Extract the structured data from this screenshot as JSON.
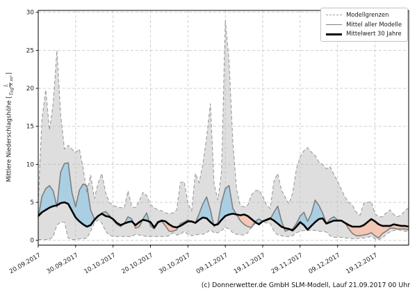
{
  "axes": {
    "ylabel_prefix": "Mittlere Niederschlagshöhe [",
    "ylabel_frac_num": "L",
    "ylabel_frac_den": "Tag × m²",
    "ylabel_suffix": "]"
  },
  "legend": {
    "items": [
      {
        "label": "Modellgrenzen",
        "style": "dashed"
      },
      {
        "label": "Mittel aller Modelle",
        "style": "gray"
      },
      {
        "label": "Mittelwert 30 Jahre",
        "style": "black"
      }
    ]
  },
  "caption": "(c) Donnerwetter.de GmbH SLM-Modell, Lauf 21.09.2017 00 Uhr",
  "chart_data": {
    "type": "line",
    "title": "",
    "xlabel": "",
    "ylabel": "Mittlere Niederschlagshöhe [L/(Tag × m²)]",
    "ylim": [
      0,
      30.25
    ],
    "grid": true,
    "legend_position": "upper right",
    "y_ticks": [
      0,
      5,
      10,
      15,
      20,
      25,
      30
    ],
    "x_ticks": [
      {
        "day": 0,
        "label": "20.09.2017"
      },
      {
        "day": 10,
        "label": "30.09.2017"
      },
      {
        "day": 20,
        "label": "10.10.2017"
      },
      {
        "day": 30,
        "label": "20.10.2017"
      },
      {
        "day": 40,
        "label": "30.10.2017"
      },
      {
        "day": 50,
        "label": "09.11.2017"
      },
      {
        "day": 60,
        "label": "19.11.2017"
      },
      {
        "day": 70,
        "label": "29.11.2017"
      },
      {
        "day": 80,
        "label": "09.12.2017"
      },
      {
        "day": 90,
        "label": "19.12.2017"
      }
    ],
    "x_unit": "Tage ab 20.09.2017",
    "colors": {
      "band": "#bebebe",
      "band_edge": "#9a9a9a",
      "above": "#a6cee3",
      "below": "#f2c5b2",
      "mean": "#7d7d7d",
      "clim": "#000000",
      "grid": "#c9c9c9"
    },
    "series": [
      {
        "name": "Modellgrenzen (obere Grenze)",
        "values": [
          5.0,
          16.0,
          19.8,
          14.5,
          18.0,
          25.0,
          16.5,
          12.0,
          12.5,
          12.0,
          11.6,
          12.0,
          9.5,
          6.2,
          8.6,
          5.5,
          7.5,
          8.8,
          6.3,
          5.0,
          4.6,
          4.4,
          4.3,
          4.3,
          6.5,
          4.4,
          4.3,
          5.2,
          6.3,
          5.9,
          4.7,
          4.3,
          4.0,
          3.9,
          3.6,
          3.5,
          3.6,
          4.0,
          7.6,
          7.7,
          4.9,
          3.9,
          8.8,
          7.6,
          10.0,
          13.5,
          18.0,
          7.5,
          5.3,
          9.0,
          29.0,
          23.5,
          13.0,
          6.8,
          4.6,
          4.4,
          4.6,
          6.0,
          6.5,
          6.6,
          5.8,
          4.7,
          4.2,
          7.8,
          8.8,
          6.6,
          5.7,
          4.8,
          6.2,
          9.4,
          11.0,
          11.8,
          12.2,
          11.6,
          11.2,
          10.3,
          10.0,
          9.4,
          9.7,
          8.7,
          7.8,
          6.7,
          5.7,
          5.0,
          4.6,
          3.7,
          3.3,
          4.9,
          5.0,
          5.1,
          3.5,
          3.1,
          3.1,
          3.6,
          4.0,
          3.4,
          3.1,
          3.3,
          3.9,
          4.3
        ]
      },
      {
        "name": "Modellgrenzen (untere Grenze)",
        "values": [
          0.1,
          0.1,
          0.1,
          0.1,
          0.5,
          2.0,
          2.4,
          2.4,
          0.3,
          0.1,
          0.1,
          0.2,
          0.2,
          0.3,
          1.2,
          2.3,
          2.7,
          2.3,
          1.2,
          0.7,
          0.5,
          0.5,
          0.5,
          0.5,
          0.5,
          0.5,
          0.8,
          0.7,
          0.6,
          0.5,
          0.5,
          0.5,
          0.5,
          0.5,
          0.5,
          0.6,
          1.0,
          0.7,
          0.8,
          1.2,
          0.8,
          0.6,
          0.7,
          0.8,
          0.8,
          1.0,
          1.4,
          1.0,
          1.0,
          1.3,
          1.7,
          1.5,
          1.0,
          0.8,
          0.7,
          0.7,
          1.0,
          1.7,
          2.2,
          2.3,
          2.4,
          2.3,
          2.2,
          1.2,
          0.7,
          0.6,
          0.5,
          0.5,
          0.6,
          1.0,
          1.2,
          1.3,
          1.3,
          1.3,
          1.3,
          1.2,
          1.2,
          1.1,
          0.6,
          0.4,
          0.4,
          0.4,
          0.3,
          0.3,
          0.2,
          0.2,
          0.3,
          0.3,
          0.4,
          0.5,
          0.2,
          0.1,
          0.3,
          0.8,
          1.1,
          1.3,
          1.4,
          1.3,
          1.2,
          1.2
        ]
      },
      {
        "name": "Mittel aller Modelle",
        "values": [
          3.0,
          5.8,
          6.8,
          7.2,
          6.5,
          4.4,
          9.0,
          10.1,
          10.2,
          6.3,
          4.4,
          6.6,
          7.4,
          7.2,
          4.0,
          2.8,
          3.1,
          3.6,
          3.8,
          3.3,
          2.7,
          2.1,
          1.8,
          2.2,
          3.1,
          2.8,
          1.6,
          1.8,
          2.8,
          3.6,
          1.9,
          1.5,
          2.3,
          2.5,
          1.9,
          1.2,
          1.2,
          1.4,
          2.2,
          2.4,
          2.7,
          2.4,
          2.3,
          3.5,
          4.8,
          5.7,
          4.0,
          1.8,
          2.3,
          5.0,
          6.8,
          7.2,
          4.2,
          3.4,
          2.6,
          2.1,
          1.8,
          1.7,
          2.5,
          2.8,
          2.5,
          2.6,
          2.8,
          3.7,
          4.5,
          2.6,
          1.2,
          1.4,
          1.5,
          2.2,
          3.2,
          3.7,
          2.5,
          3.5,
          5.3,
          4.6,
          3.6,
          2.2,
          2.8,
          3.1,
          2.7,
          2.6,
          2.3,
          1.5,
          0.9,
          0.6,
          0.6,
          0.7,
          0.8,
          1.0,
          0.6,
          0.3,
          0.9,
          1.2,
          1.6,
          1.6,
          1.5,
          1.5,
          1.5,
          1.4
        ]
      },
      {
        "name": "Mittelwert 30 Jahre",
        "values": [
          3.2,
          3.7,
          4.0,
          4.3,
          4.5,
          4.6,
          4.9,
          5.0,
          4.8,
          3.9,
          3.0,
          2.5,
          2.1,
          1.8,
          2.0,
          2.7,
          3.2,
          3.5,
          3.2,
          3.1,
          2.8,
          2.3,
          2.0,
          2.2,
          2.4,
          2.5,
          2.0,
          2.4,
          2.7,
          2.6,
          2.4,
          1.7,
          2.4,
          2.6,
          2.5,
          2.1,
          1.8,
          1.7,
          1.9,
          2.2,
          2.5,
          2.5,
          2.3,
          2.7,
          3.0,
          2.9,
          2.4,
          2.0,
          2.1,
          2.7,
          3.2,
          3.4,
          3.5,
          3.4,
          3.3,
          3.4,
          3.2,
          2.8,
          2.4,
          2.1,
          2.5,
          2.7,
          2.9,
          2.6,
          2.2,
          1.8,
          1.6,
          1.5,
          1.3,
          1.8,
          2.4,
          2.0,
          1.4,
          1.9,
          2.4,
          2.8,
          2.9,
          2.2,
          2.4,
          2.6,
          2.6,
          2.6,
          2.3,
          2.0,
          1.8,
          1.8,
          1.8,
          2.0,
          2.4,
          2.8,
          2.5,
          2.1,
          1.9,
          1.9,
          1.9,
          2.1,
          2.0,
          1.9,
          1.9,
          1.8
        ]
      }
    ]
  }
}
